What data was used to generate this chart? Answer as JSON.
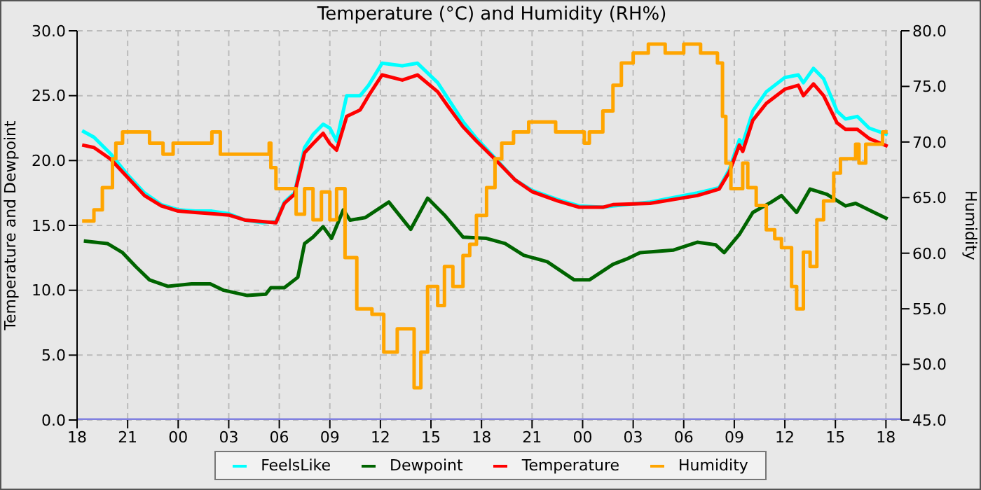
{
  "chart_data": {
    "type": "line",
    "title": "Temperature (°C) and Humidity (RH%)",
    "ylabel": "Temperature and Dewpoint",
    "y2label": "Humidity",
    "xlim": [
      18,
      66.9
    ],
    "xticks": [
      {
        "value": 18,
        "label": "18"
      },
      {
        "value": 21,
        "label": "21"
      },
      {
        "value": 24,
        "label": "00"
      },
      {
        "value": 27,
        "label": "03"
      },
      {
        "value": 30,
        "label": "06"
      },
      {
        "value": 33,
        "label": "09"
      },
      {
        "value": 36,
        "label": "12"
      },
      {
        "value": 39,
        "label": "15"
      },
      {
        "value": 42,
        "label": "18"
      },
      {
        "value": 45,
        "label": "21"
      },
      {
        "value": 48,
        "label": "00"
      },
      {
        "value": 51,
        "label": "03"
      },
      {
        "value": 54,
        "label": "06"
      },
      {
        "value": 57,
        "label": "09"
      },
      {
        "value": 60,
        "label": "12"
      },
      {
        "value": 63,
        "label": "15"
      },
      {
        "value": 66,
        "label": "18"
      }
    ],
    "ylim": [
      0,
      30
    ],
    "yticks": [
      {
        "value": 0,
        "label": "0.0"
      },
      {
        "value": 5,
        "label": "5.0"
      },
      {
        "value": 10,
        "label": "10.0"
      },
      {
        "value": 15,
        "label": "15.0"
      },
      {
        "value": 20,
        "label": "20.0"
      },
      {
        "value": 25,
        "label": "25.0"
      },
      {
        "value": 30,
        "label": "30.0"
      }
    ],
    "y2lim": [
      45,
      80
    ],
    "y2ticks": [
      {
        "value": 45,
        "label": "45.0"
      },
      {
        "value": 50,
        "label": "50.0"
      },
      {
        "value": 55,
        "label": "55.0"
      },
      {
        "value": 60,
        "label": "60.0"
      },
      {
        "value": 65,
        "label": "65.0"
      },
      {
        "value": 70,
        "label": "70.0"
      },
      {
        "value": 75,
        "label": "75.0"
      },
      {
        "value": 80,
        "label": "80.0"
      }
    ],
    "grid": true,
    "legend": "bottom",
    "marker": "none",
    "line_style": "solid",
    "series": [
      {
        "color": "#8080e0",
        "x": [
          18,
          66.9
        ],
        "values": [
          0,
          0
        ]
      },
      {
        "name": "FeelsLike",
        "color": "#00ffff",
        "x": [
          18.3,
          19,
          20,
          21,
          22,
          23,
          24,
          25,
          26,
          27,
          28,
          29,
          29.8,
          30.3,
          30.9,
          31.5,
          32.0,
          32.6,
          33.0,
          33.4,
          34.0,
          34.8,
          35.3,
          36.1,
          37.3,
          38.2,
          39.4,
          40.0,
          40.9,
          41.7,
          42.8,
          44.0,
          45.0,
          46.5,
          47.8,
          49.2,
          49.8,
          52.0,
          54.8,
          56.1,
          56.7,
          57.3,
          57.5,
          58.1,
          58.9,
          60.0,
          60.8,
          61.1,
          61.7,
          62.3,
          63.1,
          63.6,
          64.3,
          65.0,
          66.1
        ],
        "values": [
          22.3,
          21.8,
          20.5,
          18.9,
          17.5,
          16.6,
          16.2,
          16.1,
          16.1,
          15.9,
          15.4,
          15.2,
          15.3,
          16.8,
          17.5,
          21.0,
          22.0,
          22.8,
          22.5,
          21.5,
          25.0,
          25.0,
          25.8,
          27.5,
          27.3,
          27.5,
          26.0,
          24.8,
          23.0,
          21.7,
          20.2,
          18.5,
          17.7,
          17.0,
          16.5,
          16.4,
          16.5,
          16.8,
          17.5,
          17.9,
          19.3,
          21.6,
          21.3,
          23.8,
          25.3,
          26.4,
          26.6,
          26.0,
          27.1,
          26.3,
          23.8,
          23.2,
          23.4,
          22.5,
          22.0
        ]
      },
      {
        "name": "Dewpoint",
        "color": "#006400",
        "x": [
          18.4,
          19.8,
          20.7,
          21.5,
          22.3,
          23.4,
          24.8,
          25.9,
          26.7,
          28.1,
          29.2,
          29.5,
          30.3,
          31.1,
          31.5,
          32.0,
          32.6,
          33.1,
          33.8,
          34.2,
          35.1,
          36.5,
          37.8,
          38.8,
          39.8,
          40.9,
          42.3,
          43.4,
          44.5,
          45.9,
          47.5,
          48.4,
          49.8,
          50.6,
          51.4,
          53.4,
          54.8,
          55.9,
          56.4,
          57.3,
          58.1,
          59.2,
          59.8,
          60.7,
          61.5,
          62.5,
          63.6,
          64.2,
          65.3,
          66.1
        ],
        "values": [
          13.8,
          13.6,
          12.9,
          11.8,
          10.8,
          10.3,
          10.5,
          10.5,
          10.0,
          9.6,
          9.7,
          10.2,
          10.2,
          11.0,
          13.6,
          14.1,
          14.9,
          14.0,
          16.2,
          15.4,
          15.6,
          16.8,
          14.7,
          17.1,
          15.8,
          14.1,
          14.0,
          13.6,
          12.7,
          12.2,
          10.8,
          10.8,
          12.0,
          12.4,
          12.9,
          13.1,
          13.7,
          13.5,
          12.9,
          14.3,
          16.0,
          16.8,
          17.3,
          16.0,
          17.8,
          17.4,
          16.5,
          16.7,
          16.0,
          15.5
        ]
      },
      {
        "name": "Temperature",
        "color": "#ff0000",
        "x": [
          18.3,
          19,
          20,
          21,
          22,
          23,
          24,
          25,
          26,
          27,
          28,
          29,
          29.8,
          30.3,
          30.9,
          31.5,
          32.0,
          32.6,
          33.0,
          33.4,
          34.0,
          34.8,
          35.3,
          36.1,
          37.3,
          38.2,
          39.4,
          40.0,
          40.9,
          41.7,
          42.8,
          44.0,
          45.0,
          46.5,
          47.8,
          49.2,
          49.8,
          52.0,
          54.8,
          56.1,
          56.7,
          57.3,
          57.5,
          58.1,
          58.9,
          60.0,
          60.8,
          61.1,
          61.7,
          62.3,
          63.1,
          63.6,
          64.3,
          65.0,
          66.1
        ],
        "values": [
          21.2,
          21.0,
          20.1,
          18.7,
          17.3,
          16.5,
          16.1,
          16.0,
          15.9,
          15.8,
          15.4,
          15.3,
          15.2,
          16.7,
          17.4,
          20.6,
          21.3,
          22.1,
          21.3,
          20.8,
          23.4,
          23.9,
          25.0,
          26.6,
          26.2,
          26.6,
          25.3,
          24.2,
          22.6,
          21.5,
          20.1,
          18.5,
          17.6,
          16.9,
          16.4,
          16.4,
          16.6,
          16.7,
          17.3,
          17.8,
          19.1,
          21.2,
          20.7,
          23.1,
          24.4,
          25.5,
          25.8,
          25.0,
          25.9,
          25.0,
          22.9,
          22.4,
          22.4,
          21.7,
          21.1
        ]
      },
      {
        "name": "Humidity",
        "color": "#ffa500",
        "type": "step",
        "axis": "y2",
        "x": [
          18.3,
          18.8,
          19.0,
          19.5,
          20.1,
          20.3,
          20.7,
          22.2,
          22.3,
          23.0,
          23.1,
          23.7,
          25.9,
          26.0,
          26.4,
          26.5,
          29.2,
          29.4,
          29.5,
          29.8,
          30.3,
          30.6,
          31.0,
          31.5,
          32.0,
          32.5,
          33.0,
          33.4,
          33.9,
          34.6,
          35.5,
          36.2,
          37.0,
          38.0,
          38.4,
          38.8,
          39.4,
          39.8,
          40.3,
          40.9,
          41.3,
          41.7,
          42.3,
          42.8,
          43.2,
          43.9,
          44.8,
          45.6,
          46.4,
          48.1,
          48.4,
          49.2,
          49.8,
          50.3,
          51.0,
          51.9,
          52.9,
          54.0,
          55.0,
          56.0,
          56.3,
          56.5,
          56.8,
          57.5,
          57.8,
          58.3,
          58.9,
          59.4,
          59.8,
          60.4,
          60.7,
          61.1,
          61.5,
          61.9,
          62.3,
          62.9,
          63.3,
          64.2,
          64.4,
          64.8,
          65.8,
          66.1
        ],
        "values": [
          62.9,
          62.9,
          63.9,
          65.9,
          68.5,
          69.9,
          70.9,
          70.9,
          69.9,
          69.9,
          68.9,
          69.9,
          69.9,
          70.9,
          70.9,
          68.9,
          68.9,
          69.9,
          67.7,
          65.8,
          65.8,
          65.8,
          63.5,
          65.8,
          63.0,
          65.5,
          63.0,
          65.8,
          59.6,
          55.0,
          54.5,
          51.1,
          53.2,
          47.9,
          51.1,
          57.0,
          55.3,
          58.8,
          57.0,
          59.8,
          60.8,
          63.4,
          65.9,
          68.5,
          69.9,
          70.9,
          71.8,
          71.8,
          70.9,
          69.9,
          70.9,
          72.8,
          75.1,
          77.1,
          78.0,
          78.8,
          78.0,
          78.8,
          78.0,
          77.1,
          72.3,
          68.1,
          65.8,
          68.1,
          65.9,
          64.3,
          62.1,
          61.3,
          60.5,
          57.0,
          55.0,
          60.1,
          58.8,
          63.0,
          64.7,
          67.2,
          68.5,
          69.8,
          68.1,
          69.8,
          70.9,
          70.9
        ]
      }
    ]
  }
}
